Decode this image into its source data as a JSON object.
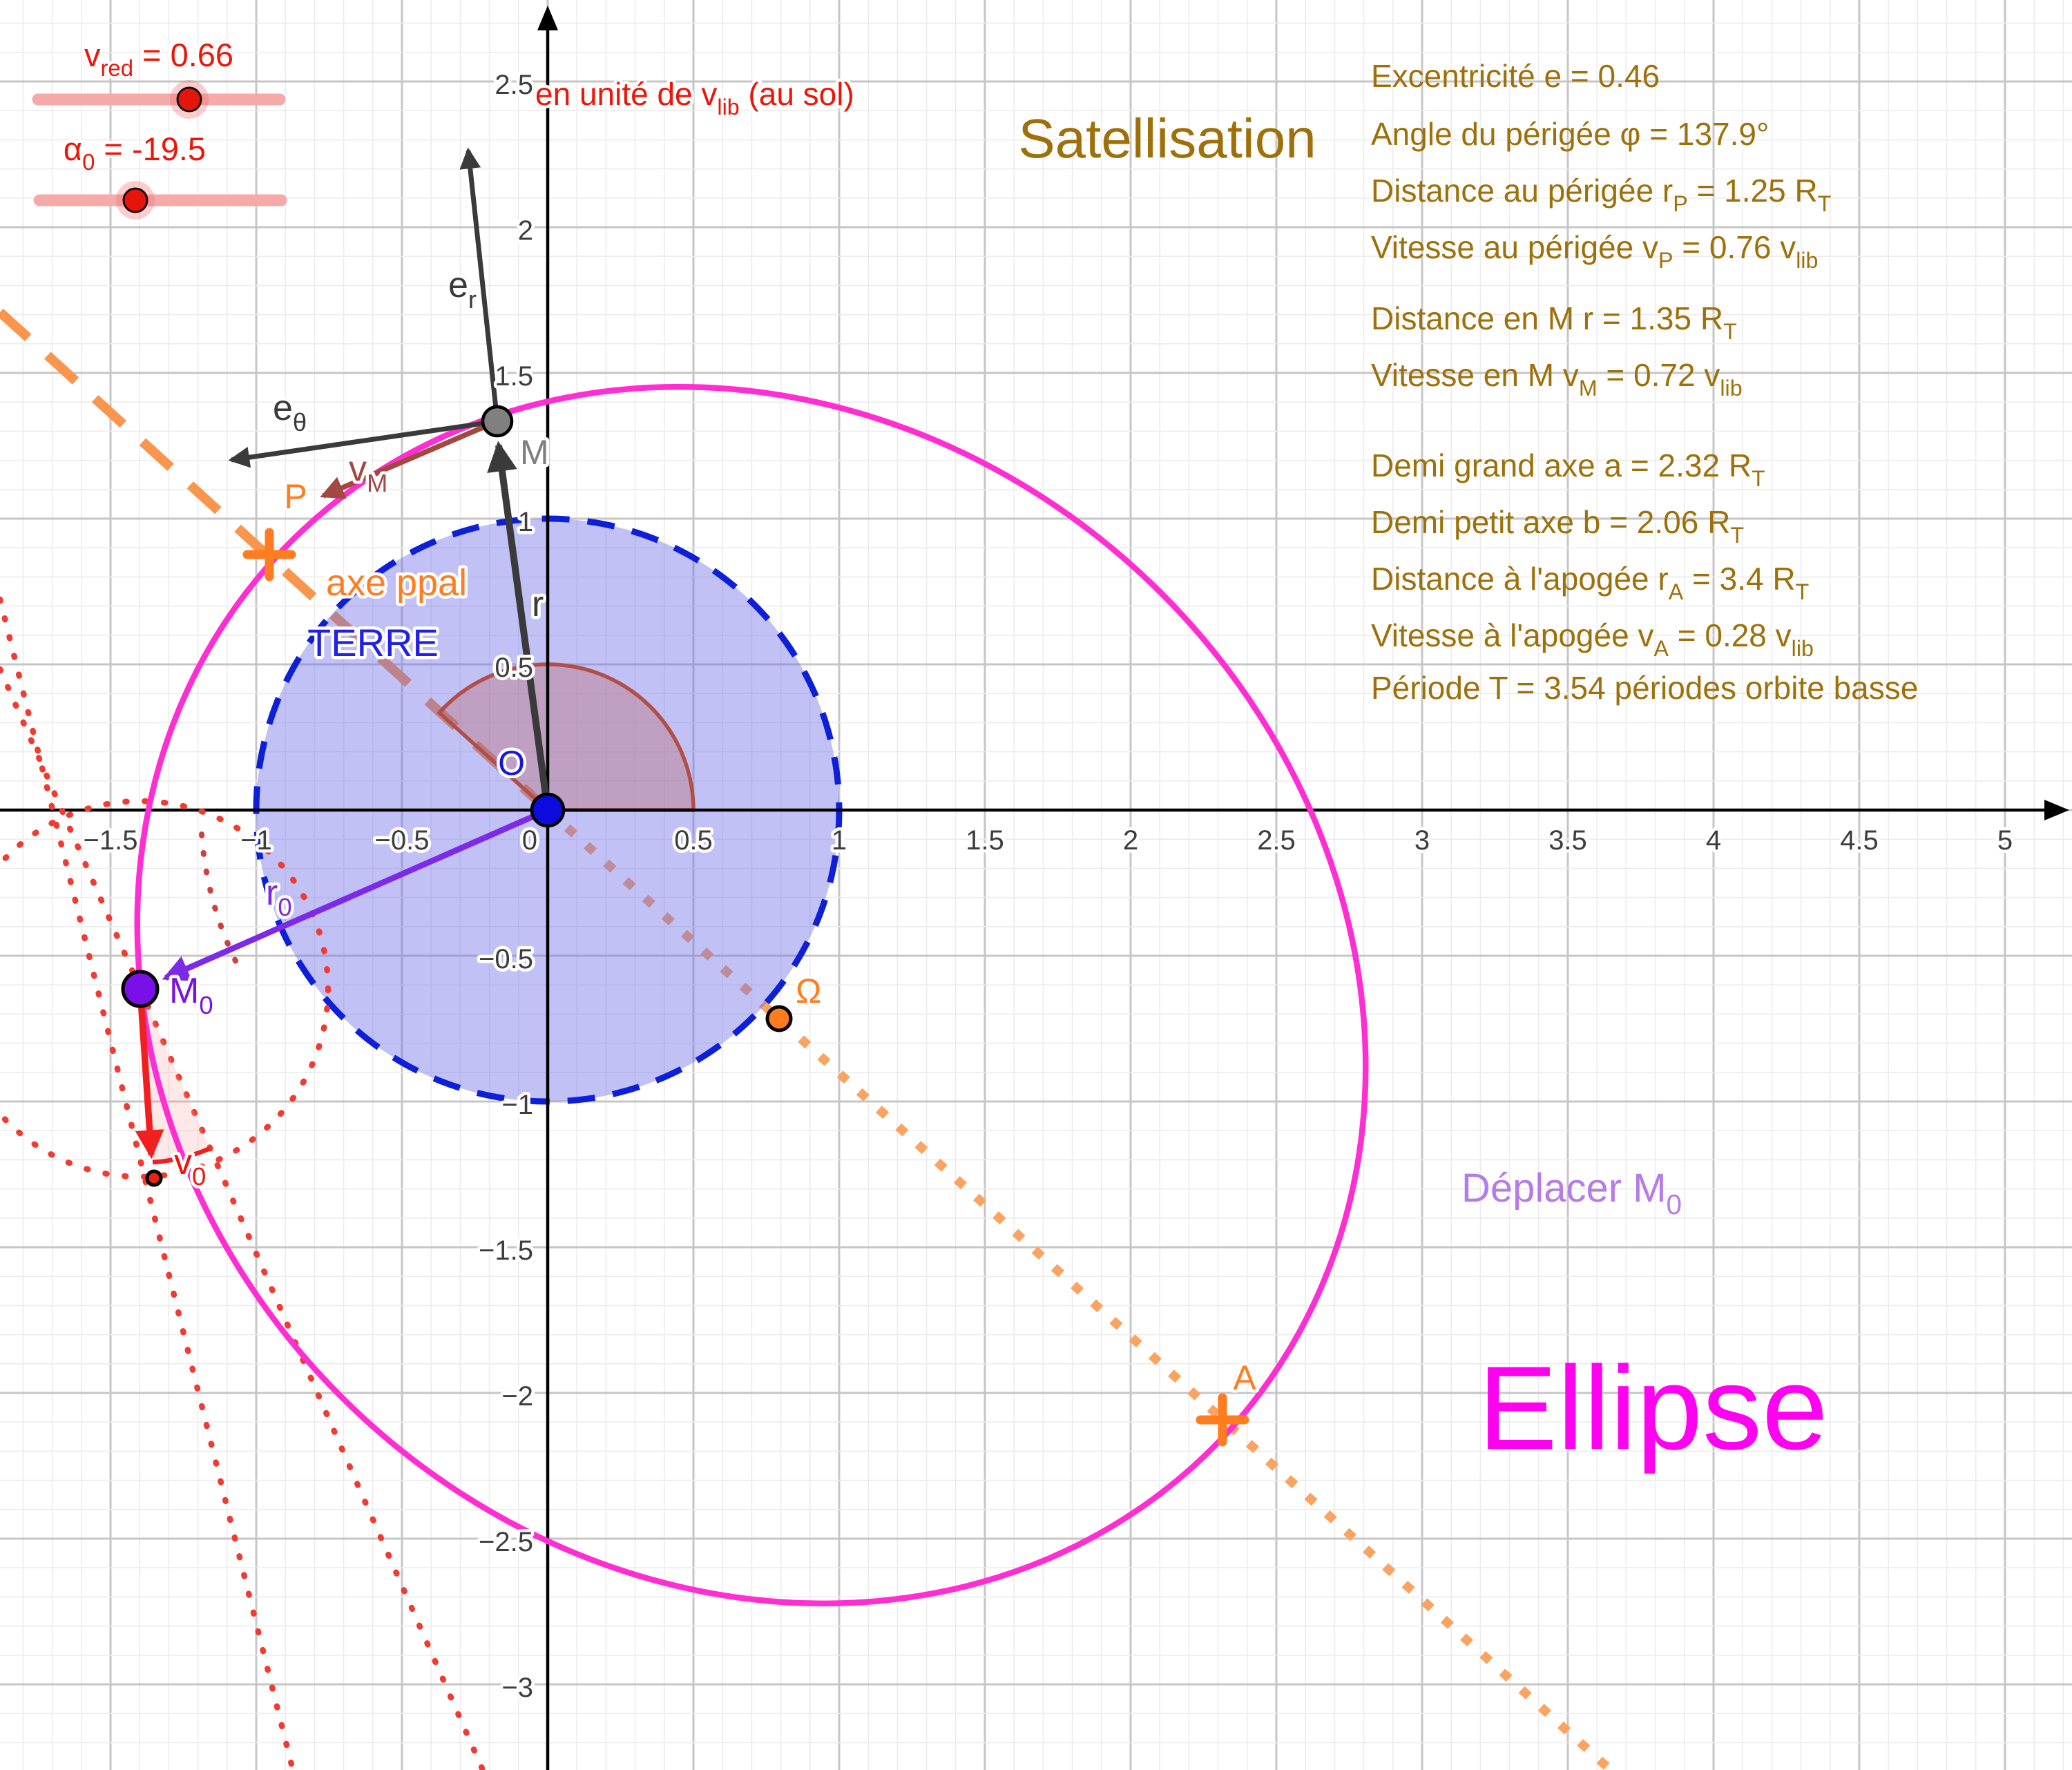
{
  "title": "Satellisation",
  "colors": {
    "brown_text": "#9e7009",
    "red": "#ee1407",
    "magenta_ellipse": "#ff2ed2",
    "magenta_text": "#ff00f0",
    "orange": "#ff7d1f",
    "earth_blue": "#0e1fd8",
    "earth_fill": "rgba(108,108,230,0.42)",
    "purple": "#7d2ae8",
    "light_purple": "#b57be8",
    "vector_gray": "#3a3a3a",
    "vm_maroon": "#a14840"
  },
  "sliders": {
    "vred": {
      "pre": "v",
      "sub": "red",
      "post": " = 0.66"
    },
    "alpha0": {
      "pre": "α",
      "sub": "0",
      "post": " = -19.5"
    },
    "note": {
      "pre": "en unité de v",
      "sub": "lib",
      "post": " (au sol)"
    }
  },
  "info": {
    "l1": {
      "t": "Excentricité e = 0.46"
    },
    "l2": {
      "t": "Angle du périgée φ = 137.9°"
    },
    "l3": {
      "a": "Distance au périgée r",
      "b": "P",
      "c": " = 1.25 R",
      "d": "T"
    },
    "l4": {
      "a": "Vitesse au périgée v",
      "b": "P",
      "c": " = 0.76 v",
      "d": "lib"
    },
    "l5": {
      "a": "Distance en M   r = 1.35 R",
      "b": "T"
    },
    "l6": {
      "a": "Vitesse en M   v",
      "b": "M",
      "c": " = 0.72 v",
      "d": "lib"
    },
    "l7": {
      "a": "Demi grand axe a = 2.32 R",
      "b": "T"
    },
    "l8": {
      "a": "Demi petit axe b = 2.06 R",
      "b": "T"
    },
    "l9": {
      "a": "Distance à l'apogée r",
      "b": "A",
      "c": " = 3.4 R",
      "d": "T"
    },
    "l10": {
      "a": "Vitesse à l'apogée v",
      "b": "A",
      "c": " = 0.28 v",
      "d": "lib"
    },
    "l11": {
      "t": "Période T = 3.54 périodes orbite basse"
    }
  },
  "figure": {
    "terre": "TERRE",
    "axe_ppal": "axe ppal",
    "ellipse_word": "Ellipse",
    "deplacer": {
      "a": "Déplacer M",
      "b": "0"
    },
    "points": {
      "O": "O",
      "M": "M",
      "P": "P",
      "A": "A",
      "omega": "Ω"
    },
    "vectors": {
      "r": "r",
      "er": {
        "a": "e",
        "b": "r"
      },
      "etheta": {
        "a": "e",
        "b": "θ"
      },
      "vM": {
        "a": "v",
        "b": "M"
      },
      "r0": {
        "a": "r",
        "b": "0"
      },
      "m0": {
        "a": "M",
        "b": "0"
      },
      "v0": {
        "a": "v",
        "b": "0"
      }
    }
  },
  "axis": {
    "x_ticks": [
      "−1.5",
      "−1",
      "−0.5",
      "0",
      "0.5",
      "1",
      "1.5",
      "2",
      "2.5",
      "3",
      "3.5",
      "4",
      "4.5",
      "5"
    ],
    "y_ticks": [
      "2.5",
      "2",
      "1.5",
      "1",
      "0.5",
      "−0.5",
      "−1",
      "−1.5",
      "−2",
      "−2.5",
      "−3"
    ]
  }
}
